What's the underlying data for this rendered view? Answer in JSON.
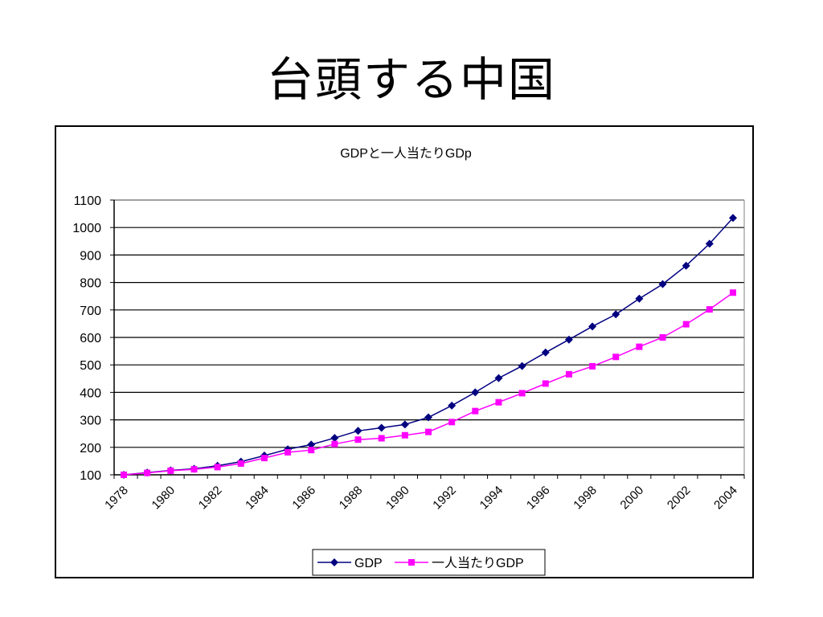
{
  "slide": {
    "title": "台頭する中国"
  },
  "chart_data": {
    "type": "line",
    "title": "GDPと一人当たりGDp",
    "xlabel": "",
    "ylabel": "",
    "ylim": [
      100,
      1100
    ],
    "yticks": [
      100,
      200,
      300,
      400,
      500,
      600,
      700,
      800,
      900,
      1000,
      1100
    ],
    "x": [
      1978,
      1979,
      1980,
      1981,
      1982,
      1983,
      1984,
      1985,
      1986,
      1987,
      1988,
      1989,
      1990,
      1991,
      1992,
      1993,
      1994,
      1995,
      1996,
      1997,
      1998,
      1999,
      2000,
      2001,
      2002,
      2003,
      2004
    ],
    "xtick_labels": [
      "1978",
      "1980",
      "1982",
      "1984",
      "1986",
      "1988",
      "1990",
      "1992",
      "1994",
      "1996",
      "1998",
      "2000",
      "2002",
      "2004"
    ],
    "grid": true,
    "legend_position": "bottom",
    "series": [
      {
        "name": "GDP",
        "color": "#000080",
        "marker": "diamond",
        "values": [
          100,
          108,
          116,
          122,
          133,
          148,
          170,
          193,
          210,
          234,
          260,
          271,
          283,
          309,
          352,
          400,
          452,
          496,
          545,
          592,
          640,
          684,
          741,
          794,
          861,
          941,
          1035
        ]
      },
      {
        "name": "一人当たりGDP",
        "color": "#ff00ff",
        "marker": "square",
        "values": [
          100,
          107,
          115,
          120,
          128,
          141,
          161,
          182,
          190,
          212,
          228,
          233,
          244,
          256,
          292,
          332,
          364,
          397,
          432,
          466,
          495,
          529,
          566,
          600,
          648,
          702,
          763
        ]
      }
    ]
  }
}
